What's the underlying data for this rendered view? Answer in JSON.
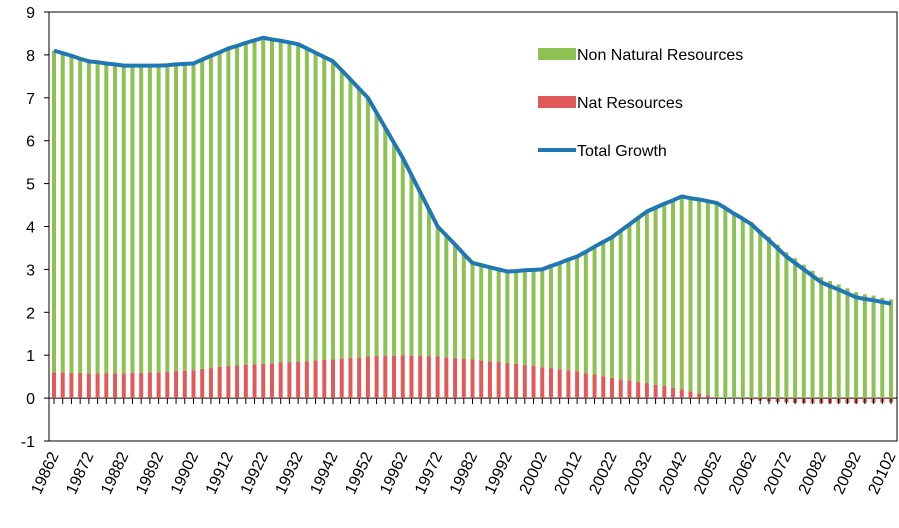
{
  "chart_data": {
    "type": "stacked_bar_line",
    "categories": [
      "19862",
      null,
      null,
      null,
      "19872",
      null,
      null,
      null,
      "19882",
      null,
      null,
      null,
      "19892",
      null,
      null,
      null,
      "19902",
      null,
      null,
      null,
      "19912",
      null,
      null,
      null,
      "19922",
      null,
      null,
      null,
      "19932",
      null,
      null,
      null,
      "19942",
      null,
      null,
      null,
      "19952",
      null,
      null,
      null,
      "19962",
      null,
      null,
      null,
      "19972",
      null,
      null,
      null,
      "19982",
      null,
      null,
      null,
      "19992",
      null,
      null,
      null,
      "20002",
      null,
      null,
      null,
      "20012",
      null,
      null,
      null,
      "20022",
      null,
      null,
      null,
      "20032",
      null,
      null,
      null,
      "20042",
      null,
      null,
      null,
      "20052",
      null,
      null,
      null,
      "20062",
      null,
      null,
      null,
      "20072",
      null,
      null,
      null,
      "20082",
      null,
      null,
      null,
      "20092",
      null,
      null,
      null,
      "20102"
    ],
    "series": [
      {
        "name": "Nat Resources",
        "color": "#e05a5a",
        "kind": "bar",
        "values": [
          0.6,
          0.6,
          0.59,
          0.59,
          0.58,
          0.58,
          0.58,
          0.58,
          0.58,
          0.59,
          0.59,
          0.6,
          0.6,
          0.61,
          0.63,
          0.64,
          0.65,
          0.68,
          0.7,
          0.73,
          0.75,
          0.76,
          0.78,
          0.79,
          0.8,
          0.81,
          0.83,
          0.84,
          0.85,
          0.86,
          0.88,
          0.89,
          0.9,
          0.92,
          0.94,
          0.95,
          0.97,
          0.98,
          0.99,
          0.99,
          1.0,
          0.99,
          0.99,
          0.98,
          0.97,
          0.95,
          0.94,
          0.92,
          0.9,
          0.88,
          0.86,
          0.84,
          0.82,
          0.8,
          0.77,
          0.75,
          0.72,
          0.7,
          0.67,
          0.65,
          0.62,
          0.58,
          0.55,
          0.51,
          0.47,
          0.44,
          0.41,
          0.38,
          0.35,
          0.31,
          0.28,
          0.24,
          0.2,
          0.16,
          0.11,
          0.07,
          0.02,
          0,
          -0.02,
          -0.03,
          -0.05,
          -0.06,
          -0.08,
          -0.09,
          -0.1,
          -0.11,
          -0.11,
          -0.12,
          -0.12,
          -0.12,
          -0.12,
          -0.12,
          -0.12,
          -0.11,
          -0.11,
          -0.1,
          -0.1
        ]
      },
      {
        "name": "Non Natural  Resources",
        "color": "#8dc252",
        "kind": "bar",
        "values": [
          7.5,
          7.44,
          7.39,
          7.32,
          7.27,
          7.25,
          7.22,
          7.2,
          7.17,
          7.16,
          7.16,
          7.15,
          7.15,
          7.15,
          7.15,
          7.15,
          7.15,
          7.21,
          7.28,
          7.33,
          7.4,
          7.45,
          7.5,
          7.55,
          7.6,
          7.55,
          7.5,
          7.45,
          7.4,
          7.29,
          7.17,
          7.06,
          6.95,
          6.72,
          6.49,
          6.26,
          6.03,
          5.67,
          5.31,
          4.96,
          4.6,
          4.21,
          3.81,
          3.42,
          3.03,
          2.84,
          2.64,
          2.44,
          2.25,
          2.22,
          2.19,
          2.16,
          2.13,
          2.16,
          2.21,
          2.24,
          2.28,
          2.38,
          2.48,
          2.58,
          2.68,
          2.83,
          2.98,
          3.13,
          3.28,
          3.46,
          3.64,
          3.82,
          4.0,
          4.13,
          4.25,
          4.37,
          4.5,
          4.5,
          4.52,
          4.52,
          4.53,
          4.43,
          4.32,
          4.21,
          4.1,
          3.92,
          3.76,
          3.58,
          3.4,
          3.26,
          3.11,
          2.97,
          2.82,
          2.73,
          2.65,
          2.56,
          2.47,
          2.42,
          2.39,
          2.34,
          2.3
        ]
      },
      {
        "name": "Total Growth",
        "color": "#1f77b4",
        "kind": "line",
        "values": [
          8.1,
          8.04,
          7.98,
          7.91,
          7.85,
          7.83,
          7.8,
          7.78,
          7.75,
          7.75,
          7.75,
          7.75,
          7.75,
          7.76,
          7.78,
          7.79,
          7.8,
          7.89,
          7.98,
          8.06,
          8.15,
          8.21,
          8.28,
          8.34,
          8.4,
          8.36,
          8.33,
          8.29,
          8.25,
          8.15,
          8.05,
          7.95,
          7.85,
          7.64,
          7.43,
          7.21,
          7.0,
          6.65,
          6.3,
          5.95,
          5.6,
          5.2,
          4.8,
          4.4,
          4.0,
          3.79,
          3.58,
          3.36,
          3.15,
          3.1,
          3.05,
          3.0,
          2.95,
          2.96,
          2.98,
          2.99,
          3.0,
          3.08,
          3.15,
          3.23,
          3.3,
          3.41,
          3.53,
          3.64,
          3.75,
          3.9,
          4.05,
          4.2,
          4.35,
          4.44,
          4.53,
          4.61,
          4.7,
          4.66,
          4.63,
          4.59,
          4.55,
          4.43,
          4.3,
          4.18,
          4.05,
          3.86,
          3.68,
          3.49,
          3.3,
          3.15,
          3.0,
          2.85,
          2.7,
          2.61,
          2.53,
          2.44,
          2.35,
          2.31,
          2.28,
          2.24,
          2.2
        ]
      }
    ],
    "ylim": [
      -1,
      9
    ],
    "yticks": [
      -1,
      0,
      1,
      2,
      3,
      4,
      5,
      6,
      7,
      8,
      9
    ],
    "legend": "upper right"
  }
}
